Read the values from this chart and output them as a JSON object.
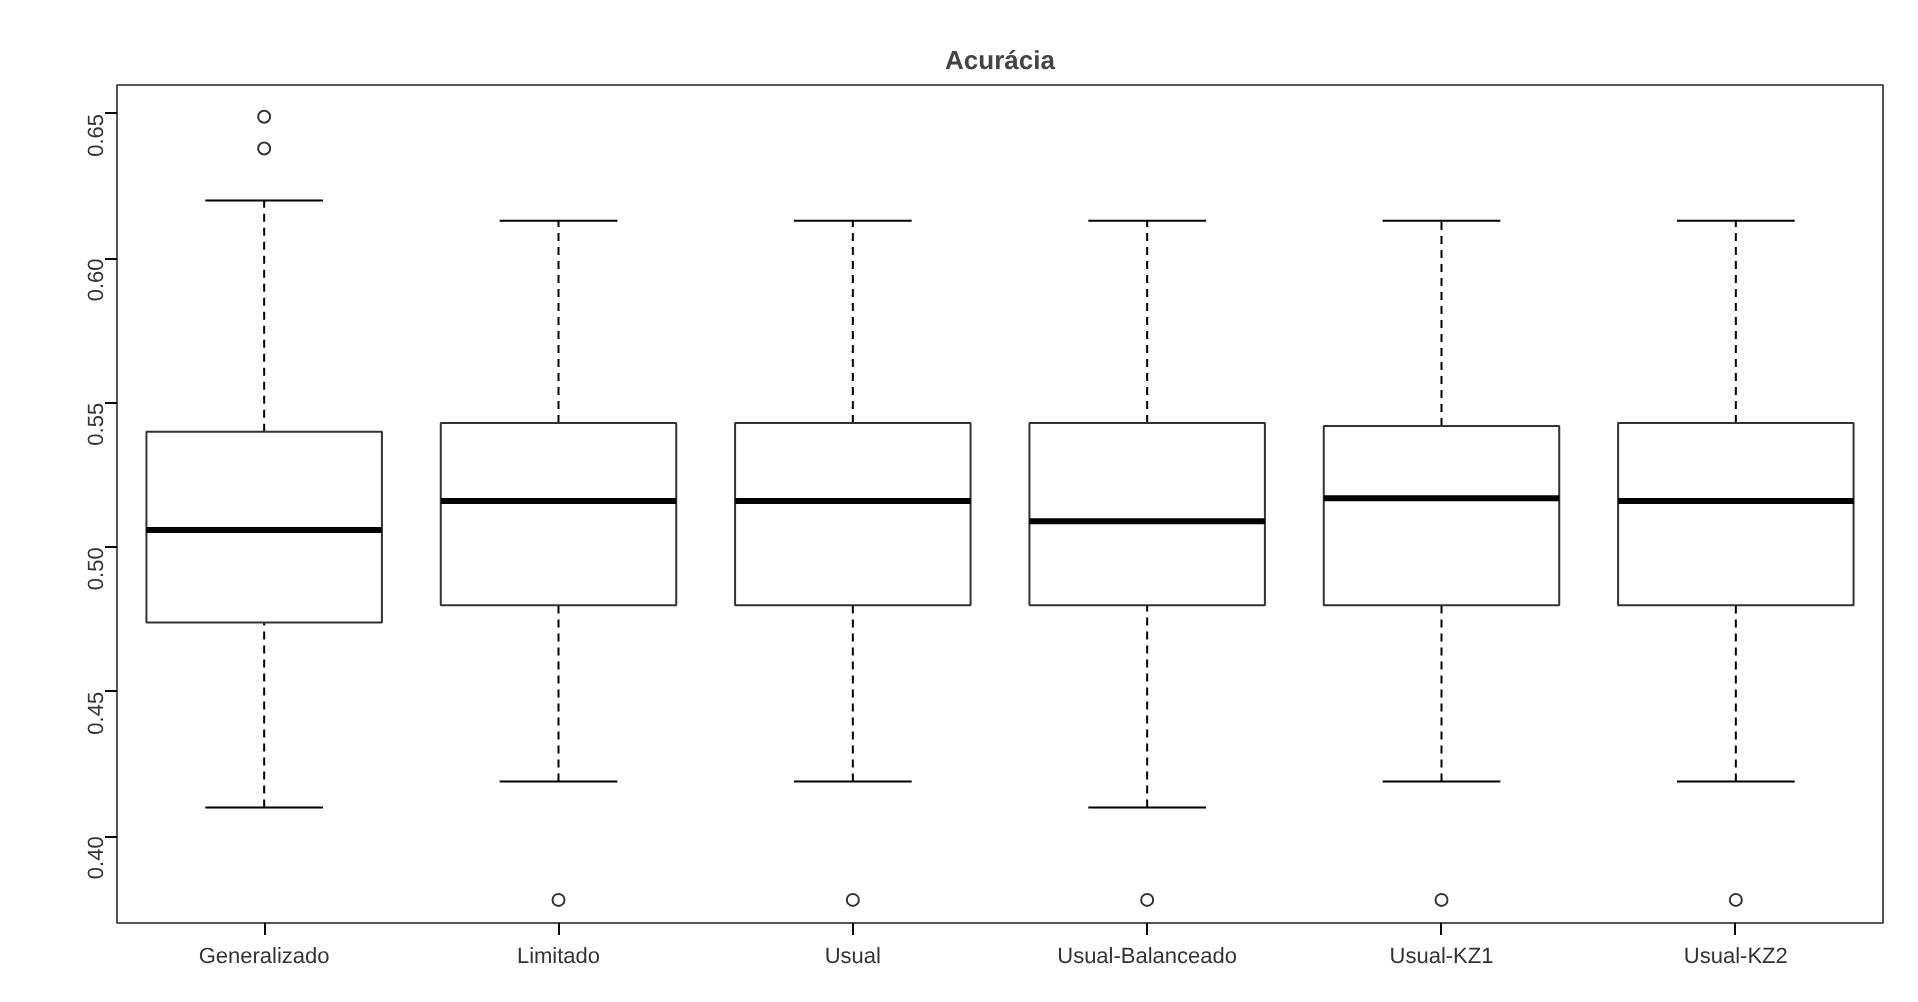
{
  "chart_data": {
    "type": "box",
    "title": "Acurácia",
    "categories": [
      "Generalizado",
      "Limitado",
      "Usual",
      "Usual-Balanceado",
      "Usual-KZ1",
      "Usual-KZ2"
    ],
    "boxes": [
      {
        "low": 0.41,
        "q1": 0.474,
        "median": 0.506,
        "q3": 0.54,
        "high": 0.62,
        "outliers": [
          0.649,
          0.638
        ]
      },
      {
        "low": 0.419,
        "q1": 0.48,
        "median": 0.516,
        "q3": 0.543,
        "high": 0.613,
        "outliers": [
          0.378
        ]
      },
      {
        "low": 0.419,
        "q1": 0.48,
        "median": 0.516,
        "q3": 0.543,
        "high": 0.613,
        "outliers": [
          0.378
        ]
      },
      {
        "low": 0.41,
        "q1": 0.48,
        "median": 0.509,
        "q3": 0.543,
        "high": 0.613,
        "outliers": [
          0.378
        ]
      },
      {
        "low": 0.419,
        "q1": 0.48,
        "median": 0.517,
        "q3": 0.542,
        "high": 0.613,
        "outliers": [
          0.378
        ]
      },
      {
        "low": 0.419,
        "q1": 0.48,
        "median": 0.516,
        "q3": 0.543,
        "high": 0.613,
        "outliers": [
          0.378
        ]
      }
    ],
    "ylim": [
      0.37,
      0.66
    ],
    "yticks": [
      {
        "value": 0.4,
        "label": "0.40"
      },
      {
        "value": 0.45,
        "label": "0.45"
      },
      {
        "value": 0.5,
        "label": "0.50"
      },
      {
        "value": 0.55,
        "label": "0.55"
      },
      {
        "value": 0.6,
        "label": "0.60"
      },
      {
        "value": 0.65,
        "label": "0.65"
      }
    ],
    "grid": false
  }
}
